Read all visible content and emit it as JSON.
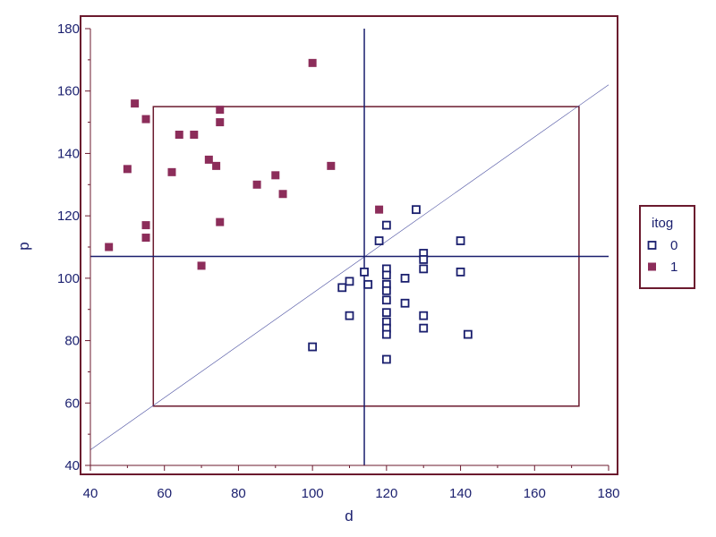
{
  "chart_data": {
    "type": "scatter",
    "xlabel": "d",
    "ylabel": "p",
    "xlim": [
      40,
      180
    ],
    "ylim": [
      40,
      180
    ],
    "x_ticks": [
      40,
      60,
      80,
      100,
      120,
      140,
      160,
      180
    ],
    "y_ticks": [
      40,
      60,
      80,
      100,
      120,
      140,
      160,
      180
    ],
    "grid": false,
    "legend": {
      "title": "itog",
      "placement": "right"
    },
    "series": [
      {
        "name": "0",
        "marker": "open-square",
        "color": "#1a1f6e",
        "points": [
          [
            100,
            78
          ],
          [
            108,
            97
          ],
          [
            110,
            99
          ],
          [
            110,
            88
          ],
          [
            114,
            102
          ],
          [
            115,
            98
          ],
          [
            118,
            112
          ],
          [
            120,
            117
          ],
          [
            120,
            103
          ],
          [
            120,
            101
          ],
          [
            120,
            98
          ],
          [
            120,
            96
          ],
          [
            120,
            93
          ],
          [
            120,
            89
          ],
          [
            120,
            86
          ],
          [
            120,
            84
          ],
          [
            120,
            82
          ],
          [
            120,
            74
          ],
          [
            125,
            100
          ],
          [
            125,
            92
          ],
          [
            128,
            122
          ],
          [
            130,
            108
          ],
          [
            130,
            106
          ],
          [
            130,
            103
          ],
          [
            130,
            88
          ],
          [
            130,
            84
          ],
          [
            140,
            112
          ],
          [
            140,
            102
          ],
          [
            142,
            82
          ]
        ]
      },
      {
        "name": "1",
        "marker": "filled-square",
        "color": "#8c2d5a",
        "points": [
          [
            45,
            110
          ],
          [
            50,
            135
          ],
          [
            52,
            156
          ],
          [
            55,
            151
          ],
          [
            55,
            117
          ],
          [
            55,
            113
          ],
          [
            62,
            134
          ],
          [
            64,
            146
          ],
          [
            68,
            146
          ],
          [
            70,
            104
          ],
          [
            72,
            138
          ],
          [
            74,
            136
          ],
          [
            75,
            154
          ],
          [
            75,
            150
          ],
          [
            75,
            118
          ],
          [
            85,
            130
          ],
          [
            90,
            133
          ],
          [
            92,
            127
          ],
          [
            100,
            169
          ],
          [
            105,
            136
          ],
          [
            118,
            122
          ]
        ]
      }
    ],
    "reference_lines": {
      "vertical_x": 114,
      "horizontal_y": 107,
      "diagonal": [
        [
          40,
          45
        ],
        [
          180,
          162
        ]
      ],
      "rectangle": {
        "x": [
          57,
          172
        ],
        "y": [
          59,
          155
        ]
      }
    }
  },
  "colors": {
    "frame": "#6b1a2e",
    "axis": "#6b1a2e",
    "text": "#1a1f6e",
    "crosshair": "#1a1f6e",
    "diagonal": "#4a4fa0",
    "rectangle": "#6b1a2e"
  }
}
